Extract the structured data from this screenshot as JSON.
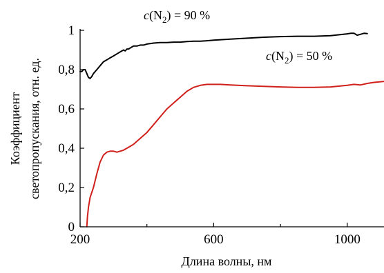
{
  "chart_data": {
    "type": "line",
    "xlabel": "Длина волны, нм",
    "ylabel_lines": [
      "Коэффициент",
      "светопропускания, отн. ед."
    ],
    "xlim": [
      200,
      1110
    ],
    "ylim": [
      0,
      1
    ],
    "x_ticks": [
      200,
      600,
      1000
    ],
    "x_tick_labels": [
      "200",
      "600",
      "1000"
    ],
    "x_minor_ticks": [
      400,
      800
    ],
    "y_ticks": [
      0,
      0.2,
      0.4,
      0.6,
      0.8,
      1
    ],
    "y_tick_labels": [
      "0",
      "0,2",
      "0,4",
      "0,6",
      "0,8",
      "1"
    ],
    "grid": false,
    "annotations": [
      {
        "text_var": "c",
        "text_open": "(N",
        "text_sub": "2",
        "text_close": ") = 90 %",
        "series": 0
      },
      {
        "text_var": "c",
        "text_open": "(N",
        "text_sub": "2",
        "text_close": ") = 50 %",
        "series": 1
      }
    ],
    "series": [
      {
        "color": "#000000",
        "x": [
          200,
          205,
          210,
          215,
          220,
          225,
          230,
          235,
          240,
          250,
          260,
          270,
          280,
          290,
          300,
          310,
          320,
          330,
          335,
          340,
          345,
          350,
          360,
          370,
          380,
          390,
          400,
          420,
          440,
          460,
          480,
          500,
          520,
          540,
          560,
          580,
          600,
          650,
          700,
          750,
          800,
          850,
          900,
          950,
          1000,
          1010,
          1020,
          1030,
          1040,
          1050,
          1060
        ],
        "y": [
          0.79,
          0.79,
          0.8,
          0.8,
          0.78,
          0.76,
          0.755,
          0.765,
          0.78,
          0.8,
          0.82,
          0.84,
          0.85,
          0.86,
          0.87,
          0.88,
          0.89,
          0.9,
          0.895,
          0.905,
          0.905,
          0.91,
          0.92,
          0.92,
          0.925,
          0.925,
          0.93,
          0.935,
          0.938,
          0.938,
          0.94,
          0.94,
          0.943,
          0.945,
          0.945,
          0.947,
          0.95,
          0.955,
          0.96,
          0.965,
          0.968,
          0.97,
          0.97,
          0.973,
          0.982,
          0.985,
          0.985,
          0.975,
          0.98,
          0.985,
          0.983
        ]
      },
      {
        "color": "#d0201c",
        "x": [
          220,
          222,
          225,
          230,
          240,
          250,
          260,
          270,
          280,
          290,
          300,
          310,
          320,
          330,
          340,
          350,
          360,
          380,
          400,
          420,
          440,
          460,
          480,
          500,
          520,
          540,
          560,
          580,
          600,
          620,
          650,
          700,
          750,
          800,
          850,
          900,
          950,
          1000,
          1020,
          1040,
          1060,
          1080,
          1110
        ],
        "y": [
          0.0,
          0.05,
          0.1,
          0.15,
          0.2,
          0.27,
          0.33,
          0.365,
          0.38,
          0.385,
          0.385,
          0.38,
          0.385,
          0.39,
          0.4,
          0.41,
          0.42,
          0.45,
          0.48,
          0.52,
          0.56,
          0.6,
          0.63,
          0.66,
          0.69,
          0.71,
          0.72,
          0.725,
          0.725,
          0.725,
          0.722,
          0.718,
          0.715,
          0.712,
          0.71,
          0.71,
          0.712,
          0.72,
          0.725,
          0.722,
          0.73,
          0.735,
          0.74
        ]
      }
    ]
  }
}
